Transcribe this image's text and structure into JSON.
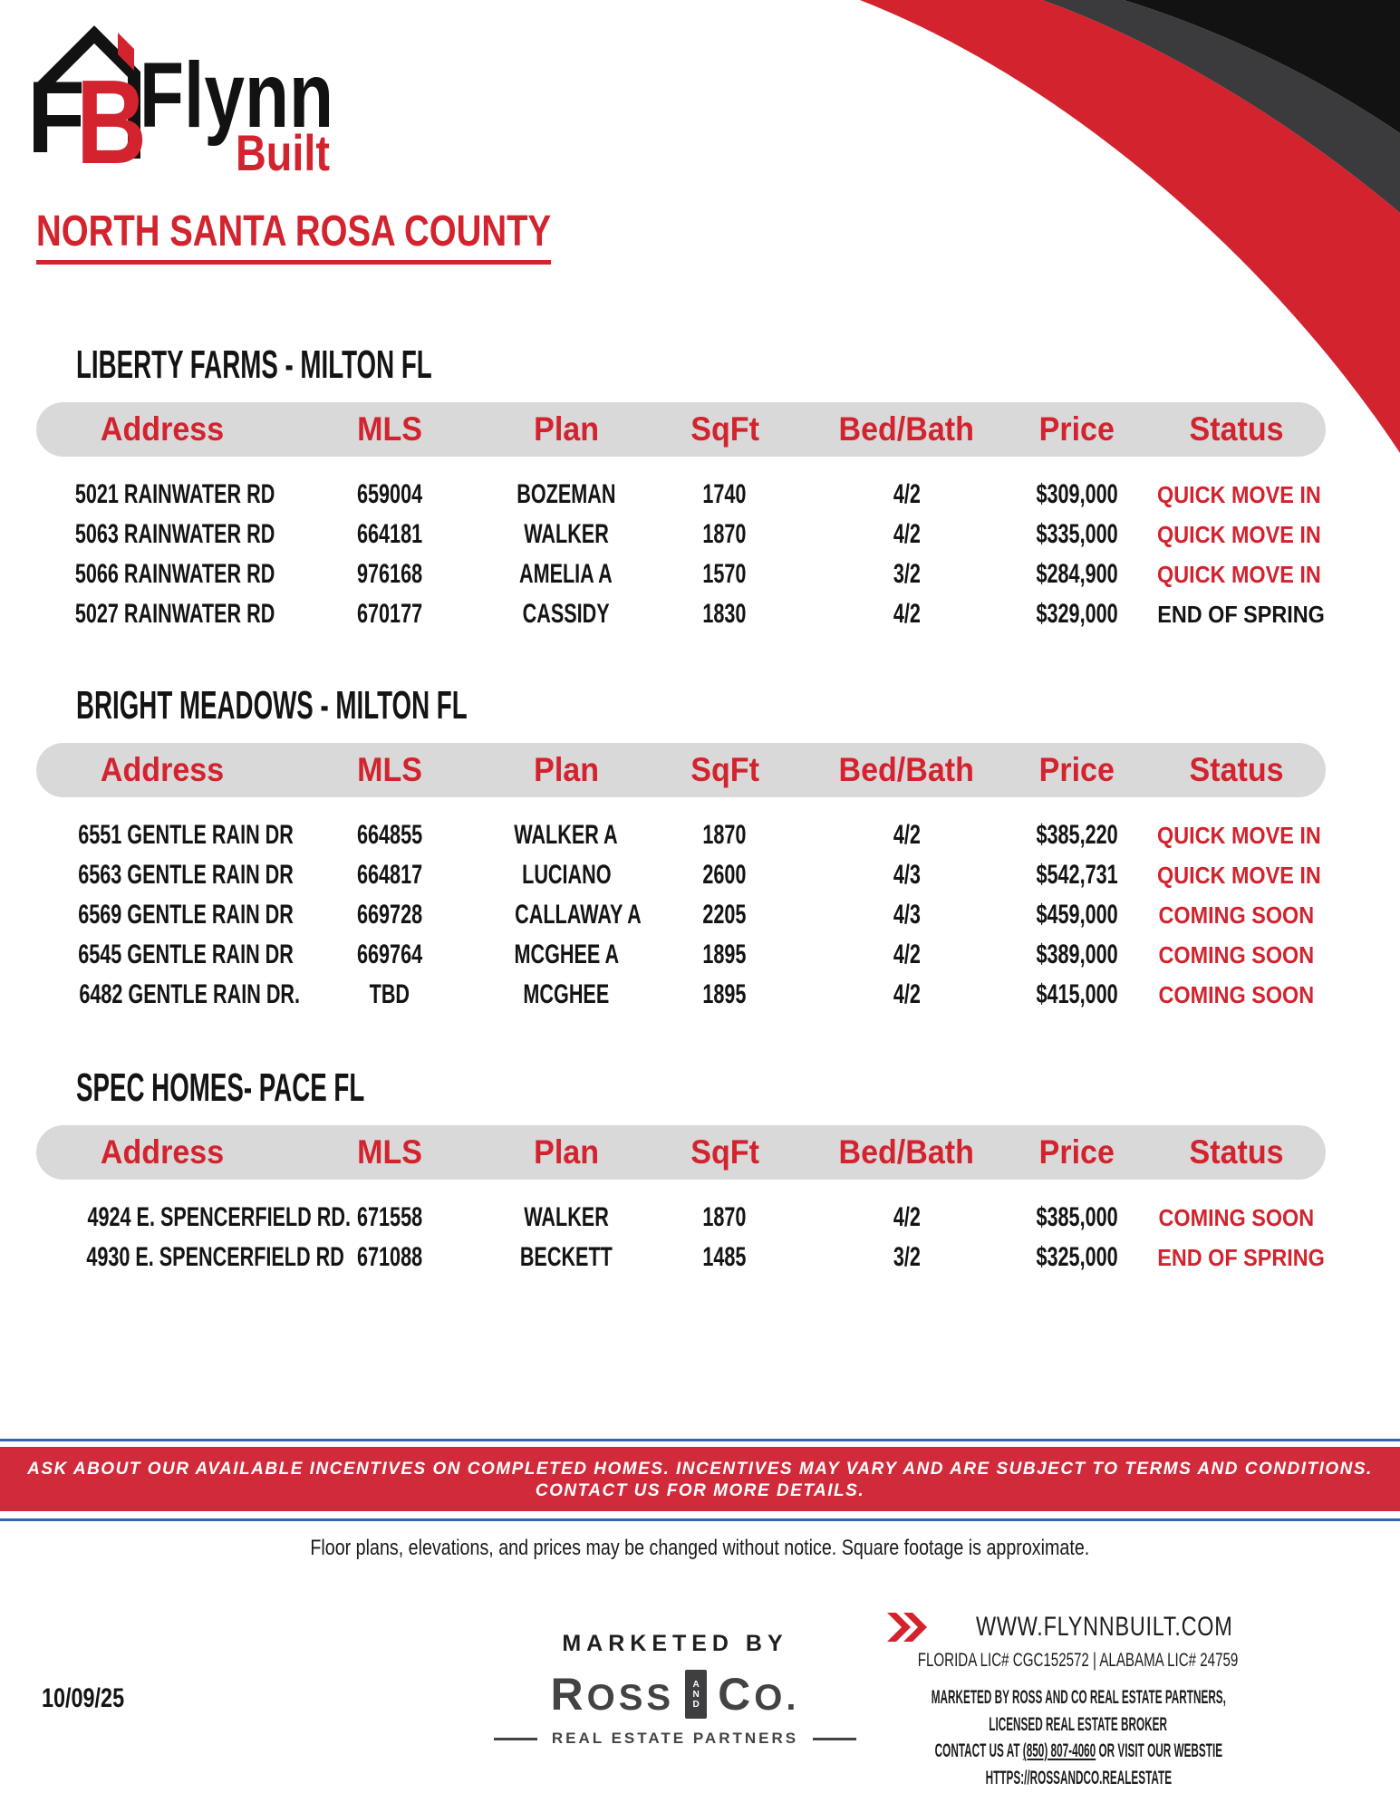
{
  "logo": {
    "f": "F",
    "b": "B",
    "name_top": "Flynn",
    "name_bottom": "Built"
  },
  "page_title": "NORTH SANTA ROSA COUNTY",
  "columns": [
    "Address",
    "MLS",
    "Plan",
    "SqFt",
    "Bed/Bath",
    "Price",
    "Status"
  ],
  "sections": [
    {
      "heading": "LIBERTY FARMS - MILTON FL",
      "rows": [
        {
          "address": "5021 RAINWATER RD",
          "mls": "659004",
          "plan": "BOZEMAN",
          "sqft": "1740",
          "bed_bath": "4/2",
          "price": "$309,000",
          "status": "QUICK MOVE IN",
          "status_color": "#D2232E"
        },
        {
          "address": "5063 RAINWATER RD",
          "mls": "664181",
          "plan": "WALKER",
          "sqft": "1870",
          "bed_bath": "4/2",
          "price": "$335,000",
          "status": "QUICK MOVE IN",
          "status_color": "#D2232E"
        },
        {
          "address": "5066 RAINWATER RD",
          "mls": "976168",
          "plan": "AMELIA A",
          "sqft": "1570",
          "bed_bath": "3/2",
          "price": "$284,900",
          "status": "QUICK MOVE IN",
          "status_color": "#D2232E"
        },
        {
          "address": "5027 RAINWATER RD",
          "mls": "670177",
          "plan": "CASSIDY",
          "sqft": "1830",
          "bed_bath": "4/2",
          "price": "$329,000",
          "status": "END OF SPRING",
          "status_color": "#141414"
        }
      ]
    },
    {
      "heading": "BRIGHT MEADOWS - MILTON FL",
      "rows": [
        {
          "address": "6551 GENTLE RAIN DR",
          "mls": "664855",
          "plan": "WALKER A",
          "sqft": "1870",
          "bed_bath": "4/2",
          "price": "$385,220",
          "status": "QUICK MOVE IN",
          "status_color": "#D2232E"
        },
        {
          "address": "6563 GENTLE RAIN DR",
          "mls": "664817",
          "plan": "LUCIANO",
          "sqft": "2600",
          "bed_bath": "4/3",
          "price": "$542,731",
          "status": "QUICK MOVE IN",
          "status_color": "#D2232E"
        },
        {
          "address": "6569 GENTLE RAIN DR",
          "mls": "669728",
          "plan": "CALLAWAY A",
          "sqft": "2205",
          "bed_bath": "4/3",
          "price": "$459,000",
          "status": "COMING SOON",
          "status_color": "#D2232E"
        },
        {
          "address": "6545 GENTLE RAIN DR",
          "mls": "669764",
          "plan": "MCGHEE A",
          "sqft": "1895",
          "bed_bath": "4/2",
          "price": "$389,000",
          "status": "COMING SOON",
          "status_color": "#D2232E"
        },
        {
          "address": "6482 GENTLE RAIN DR.",
          "mls": "TBD",
          "plan": "MCGHEE",
          "sqft": "1895",
          "bed_bath": "4/2",
          "price": "$415,000",
          "status": "COMING SOON",
          "status_color": "#D2232E"
        }
      ]
    },
    {
      "heading": "SPEC HOMES- PACE FL",
      "rows": [
        {
          "address": "4924 E. SPENCERFIELD RD.",
          "mls": "671558",
          "plan": "WALKER",
          "sqft": "1870",
          "bed_bath": "4/2",
          "price": "$385,000",
          "status": "COMING SOON",
          "status_color": "#D2232E"
        },
        {
          "address": "4930 E. SPENCERFIELD RD",
          "mls": "671088",
          "plan": "BECKETT",
          "sqft": "1485",
          "bed_bath": "3/2",
          "price": "$325,000",
          "status": "END OF SPRING",
          "status_color": "#D2232E"
        }
      ]
    }
  ],
  "banner": {
    "line1": "ASK ABOUT OUR AVAILABLE INCENTIVES ON COMPLETED HOMES. INCENTIVES MAY VARY AND ARE SUBJECT TO TERMS AND CONDITIONS.",
    "line2": "CONTACT US FOR MORE DETAILS."
  },
  "disclaimer": "Floor plans, elevations, and prices may be changed without notice. Square footage is approximate.",
  "footer": {
    "date": "10/09/25",
    "marketed_by": "MARKETED BY",
    "ross_logo": {
      "r": "R",
      "oss": "OSS",
      "and": "AND",
      "c": "C",
      "o": "O.",
      "tagline": "REAL ESTATE PARTNERS"
    },
    "website": "WWW.FLYNNBUILT.COM",
    "licenses": "FLORIDA LIC# CGC152572   |   ALABAMA LIC# 24759",
    "marketed_line": "MARKETED BY ROSS AND CO REAL ESTATE PARTNERS,",
    "licensed_line": "LICENSED REAL ESTATE BROKER",
    "contact_pre": "CONTACT US AT ",
    "contact_phone": "(850) 807-4060",
    "contact_post": " OR VISIT OUR WEBSTIE",
    "site_line": "HTTPS://ROSSANDCO.REALESTATE"
  },
  "colors": {
    "brand_red": "#D2232E",
    "banner_red": "#D12B3B",
    "header_bar_gray": "#D9D9D9",
    "swoosh_dark_gray": "#3B3B3D",
    "swoosh_black": "#121212",
    "banner_rule_blue": "#3465B0"
  }
}
